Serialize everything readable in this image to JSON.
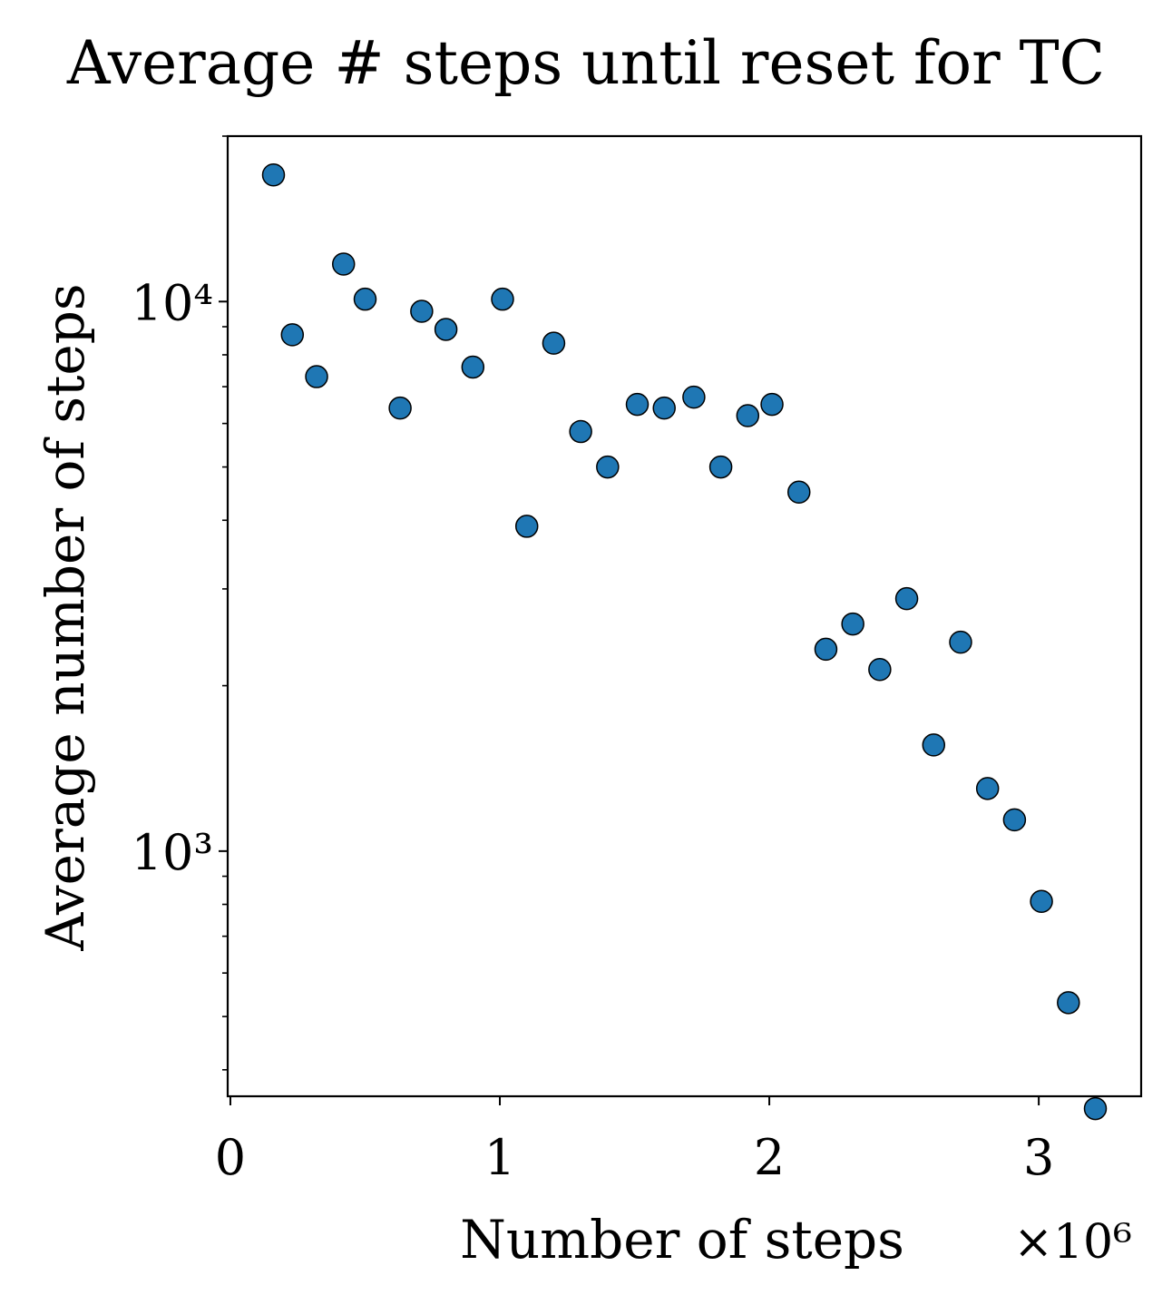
{
  "chart_data": {
    "type": "scatter",
    "title": "Average # steps until reset for TC",
    "xlabel": "Number of steps",
    "x_offset_text": "×10⁶",
    "ylabel": "Average number of steps",
    "yscale": "log",
    "xlim": [
      -0.01,
      3.38
    ],
    "ylim": [
      358,
      20000
    ],
    "x_ticks": [
      0,
      1,
      2,
      3
    ],
    "x_tick_labels": [
      "0",
      "1",
      "2",
      "3"
    ],
    "y_major_ticks": [
      1000,
      10000
    ],
    "y_major_tick_labels": [
      "10³",
      "10⁴"
    ],
    "y_minor_ticks": [
      400,
      500,
      600,
      700,
      800,
      900,
      2000,
      3000,
      4000,
      5000,
      6000,
      7000,
      8000,
      9000,
      20000
    ],
    "grid": false,
    "marker_color": "#1f77b4",
    "marker_edge_color": "#000000",
    "series": [
      {
        "name": "TC",
        "x": [
          0.16,
          0.23,
          0.32,
          0.42,
          0.5,
          0.63,
          0.71,
          0.8,
          0.9,
          1.01,
          1.1,
          1.2,
          1.3,
          1.4,
          1.51,
          1.61,
          1.72,
          1.82,
          1.92,
          2.01,
          2.11,
          2.21,
          2.31,
          2.41,
          2.51,
          2.61,
          2.71,
          2.81,
          2.91,
          3.01,
          3.11,
          3.21
        ],
        "y": [
          17000,
          8700,
          7300,
          11700,
          10100,
          6400,
          9600,
          8900,
          7600,
          10100,
          3900,
          8400,
          5800,
          5000,
          6500,
          6400,
          6700,
          5000,
          6200,
          6500,
          4500,
          2330,
          2590,
          2140,
          2880,
          1560,
          2400,
          1300,
          1140,
          810,
          530,
          340
        ]
      }
    ]
  }
}
